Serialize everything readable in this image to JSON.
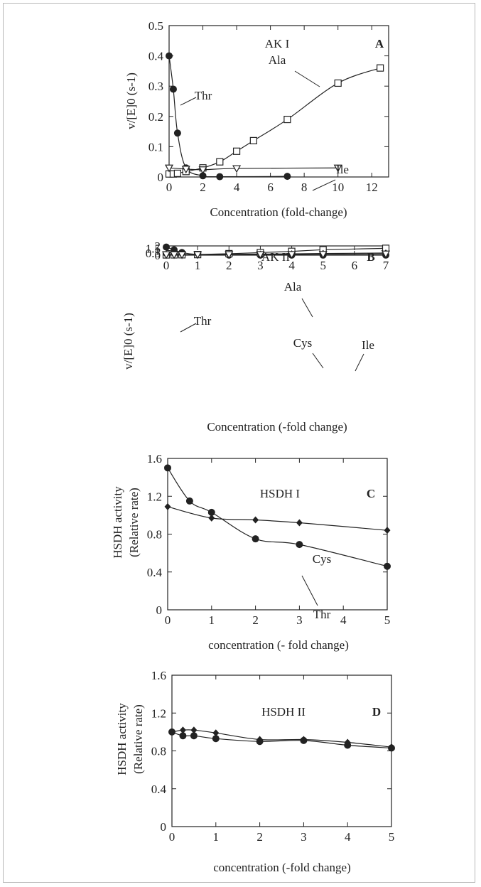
{
  "chart_data": [
    {
      "panel": "A",
      "type": "scatter",
      "title": "AK I",
      "panel_letter": "A",
      "xlabel": "Concentration (fold-change)",
      "ylabel": "v/[E]0 (s-1)",
      "xlim": [
        0,
        13
      ],
      "ylim": [
        0,
        0.5
      ],
      "xticks": [
        "0",
        "2",
        "4",
        "6",
        "8",
        "10",
        "12"
      ],
      "yticks": [
        "0",
        "0.1",
        "0.2",
        "0.3",
        "0.4",
        "0.5"
      ],
      "series": [
        {
          "name": "Thr",
          "marker": "filled-circle",
          "x": [
            0,
            0.25,
            0.5,
            1,
            2,
            3,
            7
          ],
          "y": [
            0.4,
            0.29,
            0.145,
            0.03,
            0.004,
            0.001,
            0.002
          ]
        },
        {
          "name": "Ala",
          "marker": "open-square",
          "x": [
            0,
            0.25,
            0.5,
            1,
            2,
            3,
            4,
            5,
            7,
            10,
            12.5
          ],
          "y": [
            0.01,
            0.01,
            0.012,
            0.018,
            0.03,
            0.05,
            0.085,
            0.12,
            0.19,
            0.31,
            0.36
          ]
        },
        {
          "name": "Ile",
          "marker": "open-triangle-down",
          "x": [
            0,
            1,
            2,
            4,
            10
          ],
          "y": [
            0.03,
            0.026,
            0.024,
            0.028,
            0.03
          ]
        }
      ]
    },
    {
      "panel": "B",
      "type": "scatter",
      "title": "AK II",
      "panel_letter": "B",
      "xlabel": "Concentration (-fold change)",
      "ylabel": "v/[E]0 (s-1)",
      "xlim": [
        0,
        7
      ],
      "ylim": [
        0,
        2
      ],
      "xticks": [
        "0",
        "1",
        "2",
        "3",
        "4",
        "5",
        "6",
        "7"
      ],
      "yticks": [
        "0",
        "0.5",
        "1",
        "1.5",
        "2"
      ],
      "series": [
        {
          "name": "Thr",
          "marker": "filled-circle",
          "x": [
            0,
            0.25,
            0.5,
            1,
            2,
            3,
            4,
            5,
            7
          ],
          "y": [
            1.75,
            1.15,
            0.58,
            0.13,
            0.02,
            0.01,
            0.01,
            0.01,
            0.01
          ]
        },
        {
          "name": "Ala",
          "marker": "open-square",
          "x": [
            0,
            0.25,
            0.5,
            1,
            2,
            3,
            4,
            5,
            7
          ],
          "y": [
            0.06,
            0.07,
            0.09,
            0.13,
            0.32,
            0.55,
            0.82,
            1.16,
            1.48
          ]
        },
        {
          "name": "Cys",
          "marker": "filled-diamond",
          "x": [
            0,
            0.25,
            0.5,
            1,
            2,
            3,
            4,
            5,
            7
          ],
          "y": [
            0.09,
            0.1,
            0.11,
            0.12,
            0.18,
            0.24,
            0.29,
            0.36,
            0.47
          ]
        },
        {
          "name": "Ile",
          "marker": "open-triangle-down",
          "x": [
            0,
            0.25,
            0.5,
            1,
            2,
            3,
            4,
            5,
            7
          ],
          "y": [
            0.11,
            0.11,
            0.1,
            0.11,
            0.13,
            0.15,
            0.17,
            0.2,
            0.27
          ]
        }
      ]
    },
    {
      "panel": "C",
      "type": "scatter",
      "title": "HSDH I",
      "panel_letter": "C",
      "xlabel": "concentration (- fold change)",
      "ylabel": "HSDH activity (Relative rate)",
      "ylabel_line1": "HSDH activity",
      "ylabel_line2": "(Relative rate)",
      "xlim": [
        0,
        5
      ],
      "ylim": [
        0,
        1.6
      ],
      "xticks": [
        "0",
        "1",
        "2",
        "3",
        "4",
        "5"
      ],
      "yticks": [
        "0",
        "0.4",
        "0.8",
        "1.2",
        "1.6"
      ],
      "series": [
        {
          "name": "Thr",
          "marker": "filled-circle",
          "x": [
            0,
            0.5,
            1,
            2,
            3,
            5
          ],
          "y": [
            1.5,
            1.15,
            1.03,
            0.75,
            0.69,
            0.46
          ]
        },
        {
          "name": "Cys",
          "marker": "filled-diamond",
          "x": [
            0,
            1,
            2,
            3,
            5
          ],
          "y": [
            1.09,
            0.97,
            0.95,
            0.92,
            0.84
          ]
        }
      ]
    },
    {
      "panel": "D",
      "type": "scatter",
      "title": "HSDH II",
      "panel_letter": "D",
      "xlabel": "concentration (-fold change)",
      "ylabel": "HSDH activity (Relative rate)",
      "ylabel_line1": "HSDH activity",
      "ylabel_line2": "(Relative rate)",
      "xlim": [
        0,
        5
      ],
      "ylim": [
        0,
        1.6
      ],
      "xticks": [
        "0",
        "1",
        "2",
        "3",
        "4",
        "5"
      ],
      "yticks": [
        "0",
        "0.4",
        "0.8",
        "1.2",
        "1.6"
      ],
      "series": [
        {
          "marker": "filled-circle",
          "x": [
            0,
            0.25,
            0.5,
            1,
            2,
            3,
            4,
            5
          ],
          "y": [
            1.0,
            0.96,
            0.96,
            0.93,
            0.9,
            0.91,
            0.86,
            0.83
          ]
        },
        {
          "marker": "filled-diamond",
          "x": [
            0,
            0.25,
            0.5,
            1,
            2,
            3,
            4,
            5
          ],
          "y": [
            1.0,
            1.02,
            1.02,
            0.99,
            0.92,
            0.92,
            0.89,
            0.84
          ]
        }
      ]
    }
  ],
  "colors": {
    "ink": "#222222",
    "frame": "#b8b8b8",
    "background": "#ffffff"
  }
}
